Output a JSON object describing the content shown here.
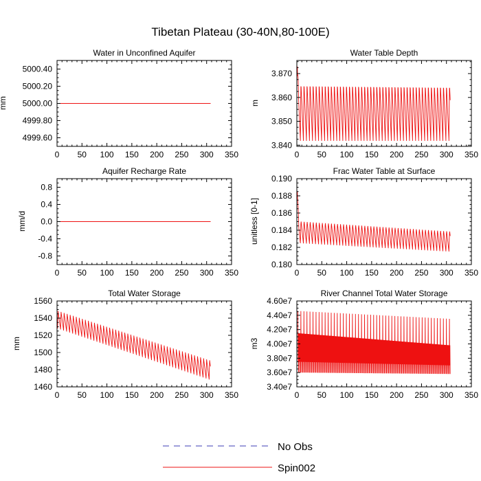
{
  "title": "Tibetan Plateau (30-40N,80-100E)",
  "colors": {
    "obs": "#3b3bb5",
    "spin": "#ee1111",
    "axis": "#000000"
  },
  "legend": {
    "items": [
      {
        "label": "No Obs",
        "style": "dashed"
      },
      {
        "label": "Spin002",
        "style": "solid"
      }
    ]
  },
  "chart_data": [
    {
      "id": "water-unconfined-aquifer",
      "type": "line",
      "title": "Water in Unconfined Aquifer",
      "ylabel": "mm",
      "xlim": [
        0,
        350
      ],
      "ylim": [
        4999.5,
        5000.5
      ],
      "xticks": [
        "0",
        "50",
        "100",
        "150",
        "200",
        "250",
        "300",
        "350"
      ],
      "yticks": [
        {
          "value": 4999.6,
          "label": "4999.60"
        },
        {
          "value": 4999.8,
          "label": "4999.80"
        },
        {
          "value": 5000.0,
          "label": "5000.00"
        },
        {
          "value": 5000.2,
          "label": "5000.20"
        },
        {
          "value": 5000.4,
          "label": "5000.40"
        }
      ],
      "series": [
        {
          "name": "Spin002",
          "pattern": "constant",
          "x_end": 308,
          "value": 5000.0
        }
      ]
    },
    {
      "id": "water-table-depth",
      "type": "line",
      "title": "Water Table Depth",
      "ylabel": "m",
      "xlim": [
        0,
        350
      ],
      "ylim": [
        3.8395,
        3.8755
      ],
      "xticks": [
        "0",
        "50",
        "100",
        "150",
        "200",
        "250",
        "300",
        "350"
      ],
      "yticks": [
        {
          "value": 3.84,
          "label": "3.840"
        },
        {
          "value": 3.85,
          "label": "3.850"
        },
        {
          "value": 3.86,
          "label": "3.860"
        },
        {
          "value": 3.87,
          "label": "3.870"
        }
      ],
      "series": [
        {
          "name": "Spin002",
          "pattern": "seasonal",
          "x_start": 1,
          "x_end": 308,
          "period": 6.08,
          "initial": 3.873,
          "initial_decay": 2.5,
          "top": [
            3.8665,
            3.8658
          ],
          "bottom": [
            3.8418,
            3.8418
          ],
          "peak_frac": 0.18
        }
      ]
    },
    {
      "id": "aquifer-recharge-rate",
      "type": "line",
      "title": "Aquifer Recharge Rate",
      "ylabel": "mm/d",
      "xlim": [
        0,
        350
      ],
      "ylim": [
        -1,
        1
      ],
      "xticks": [
        "0",
        "50",
        "100",
        "150",
        "200",
        "250",
        "300",
        "350"
      ],
      "yticks": [
        {
          "value": -0.8,
          "label": "-0.8"
        },
        {
          "value": -0.4,
          "label": "-0.4"
        },
        {
          "value": 0.0,
          "label": "0.0"
        },
        {
          "value": 0.4,
          "label": "0.4"
        },
        {
          "value": 0.8,
          "label": "0.8"
        }
      ],
      "series": [
        {
          "name": "Spin002",
          "pattern": "constant",
          "x_end": 308,
          "value": 0.0
        }
      ]
    },
    {
      "id": "frac-water-table-surface",
      "type": "line",
      "title": "Frac Water Table at Surface",
      "ylabel": "unitless [0-1]",
      "xlim": [
        0,
        350
      ],
      "ylim": [
        0.18,
        0.19
      ],
      "xticks": [
        "0",
        "50",
        "100",
        "150",
        "200",
        "250",
        "300",
        "350"
      ],
      "yticks": [
        {
          "value": 0.18,
          "label": "0.180"
        },
        {
          "value": 0.182,
          "label": "0.182"
        },
        {
          "value": 0.184,
          "label": "0.184"
        },
        {
          "value": 0.186,
          "label": "0.186"
        },
        {
          "value": 0.188,
          "label": "0.188"
        },
        {
          "value": 0.19,
          "label": "0.190"
        }
      ],
      "series": [
        {
          "name": "Spin002",
          "pattern": "seasonal",
          "x_start": 1,
          "x_end": 308,
          "period": 6.08,
          "initial": 0.1885,
          "initial_decay": 3,
          "top": [
            0.1852,
            0.184
          ],
          "bottom": [
            0.1825,
            0.1815
          ],
          "peak_frac": 0.2
        }
      ]
    },
    {
      "id": "total-water-storage",
      "type": "line",
      "title": "Total Water Storage",
      "ylabel": "mm",
      "xlim": [
        0,
        350
      ],
      "ylim": [
        1460,
        1560
      ],
      "xticks": [
        "0",
        "50",
        "100",
        "150",
        "200",
        "250",
        "300",
        "350"
      ],
      "yticks": [
        {
          "value": 1460,
          "label": "1460"
        },
        {
          "value": 1480,
          "label": "1480"
        },
        {
          "value": 1500,
          "label": "1500"
        },
        {
          "value": 1520,
          "label": "1520"
        },
        {
          "value": 1540,
          "label": "1540"
        },
        {
          "value": 1560,
          "label": "1560"
        }
      ],
      "series": [
        {
          "name": "Spin002",
          "pattern": "seasonal",
          "x_start": 1,
          "x_end": 308,
          "period": 6.08,
          "initial": 1512,
          "initial_decay": 0,
          "top": [
            1549,
            1491
          ],
          "bottom": [
            1528,
            1468
          ],
          "peak_frac": 0.15
        }
      ]
    },
    {
      "id": "river-channel-storage",
      "type": "line",
      "title": "River Channel Total Water Storage",
      "ylabel": "m3",
      "xlim": [
        0,
        350
      ],
      "ylim": [
        34000000,
        46000000
      ],
      "xticks": [
        "0",
        "50",
        "100",
        "150",
        "200",
        "250",
        "300",
        "350"
      ],
      "yticks": [
        {
          "value": 34000000,
          "label": "3.40e7"
        },
        {
          "value": 36000000,
          "label": "3.60e7"
        },
        {
          "value": 38000000,
          "label": "3.80e7"
        },
        {
          "value": 40000000,
          "label": "4.00e7"
        },
        {
          "value": 42000000,
          "label": "4.20e7"
        },
        {
          "value": 44000000,
          "label": "4.40e7"
        },
        {
          "value": 46000000,
          "label": "4.60e7"
        }
      ],
      "series": [
        {
          "name": "Spin002",
          "pattern": "oscillating",
          "x_start": 2,
          "x_end": 308,
          "period": 6.08,
          "top": [
            44600000,
            43500000
          ],
          "bottom": [
            36000000,
            35800000
          ],
          "inner_top": [
            41500000,
            39800000
          ],
          "inner_bottom": [
            37500000,
            37000000
          ]
        }
      ]
    }
  ]
}
